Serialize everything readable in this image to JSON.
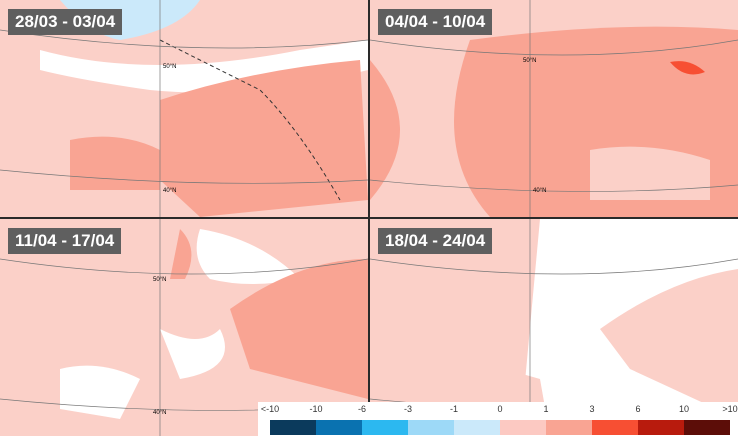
{
  "panels": [
    {
      "label": "28/03 - 03/04"
    },
    {
      "label": "04/04 - 10/04"
    },
    {
      "label": "11/04 - 17/04"
    },
    {
      "label": "18/04 - 24/04"
    }
  ],
  "gridlabels": {
    "lat50": "50°N",
    "lat40": "40°N"
  },
  "legend": {
    "ticks": [
      "<-10",
      "-10",
      "-6",
      "-3",
      "-1",
      "0",
      "1",
      "3",
      "6",
      "10",
      ">10"
    ],
    "colors": [
      "#0b3a5c",
      "#0a72b0",
      "#2cb8f0",
      "#9dd9f7",
      "#cbe9fa",
      "#fcc9c2",
      "#f9a493",
      "#f74f33",
      "#b81b0d",
      "#5c0d08"
    ]
  }
}
